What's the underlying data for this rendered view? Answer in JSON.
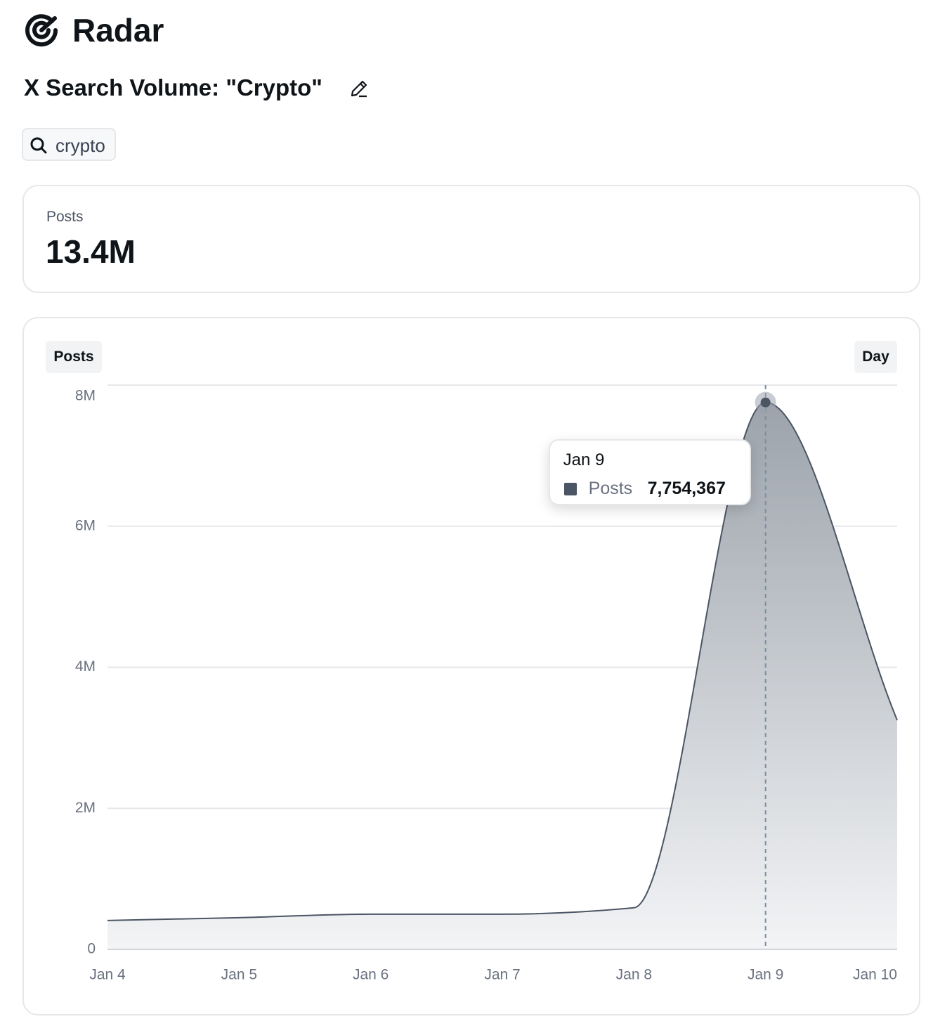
{
  "header": {
    "app_name": "Radar",
    "title": "X Search Volume: \"Crypto\"",
    "search_query": "crypto"
  },
  "stats": {
    "label": "Posts",
    "value": "13.4M"
  },
  "chart_data": {
    "type": "area",
    "metric": "Posts",
    "interval": "Day",
    "categories": [
      "Jan 4",
      "Jan 5",
      "Jan 6",
      "Jan 7",
      "Jan 8",
      "Jan 9",
      "Jan 10"
    ],
    "series": [
      {
        "name": "Posts",
        "color": "#4b5563",
        "values": [
          410000,
          450000,
          500000,
          500000,
          590000,
          7754367,
          3250000
        ],
        "value_labels": [
          null,
          null,
          null,
          null,
          null,
          "7,754,367",
          null
        ]
      }
    ],
    "ylim": [
      0,
      8000000
    ],
    "yticks": [
      0,
      {
        "value": 2000000,
        "label": "2M"
      },
      {
        "value": 4000000,
        "label": "4M"
      },
      {
        "value": 6000000,
        "label": "6M"
      },
      {
        "value": 8000000,
        "label": "8M"
      }
    ],
    "grid": true
  }
}
